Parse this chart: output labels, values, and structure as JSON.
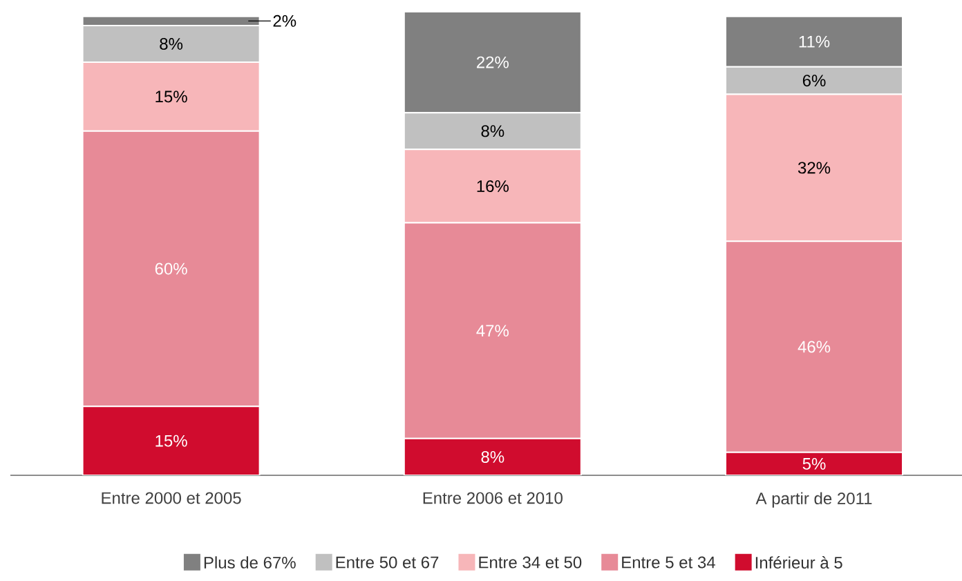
{
  "chart_data": {
    "type": "bar",
    "stacked": true,
    "legend": "bottom",
    "categories": [
      "Entre 2000 et 2005",
      "Entre 2006 et 2010",
      "A partir de 2011"
    ],
    "series": [
      {
        "name": "Inférieur à 5",
        "color": "#d00c2e",
        "values": [
          15,
          8,
          5
        ],
        "value_labels": [
          "15%",
          "8%",
          "5%"
        ]
      },
      {
        "name": "Entre 5 et 34",
        "color": "#e78a97",
        "values": [
          60,
          47,
          46
        ],
        "value_labels": [
          "60%",
          "47%",
          "46%"
        ]
      },
      {
        "name": "Entre 34 et 50",
        "color": "#f7b6b9",
        "values": [
          15,
          16,
          32
        ],
        "value_labels": [
          "15%",
          "16%",
          "32%"
        ]
      },
      {
        "name": "Entre 50 et 67",
        "color": "#c0c0c0",
        "values": [
          8,
          8,
          6
        ],
        "value_labels": [
          "8%",
          "8%",
          "6%"
        ]
      },
      {
        "name": "Plus de 67%",
        "color": "#808080",
        "values": [
          2,
          22,
          11
        ],
        "value_labels": [
          "2%",
          "22%",
          "11%"
        ]
      }
    ]
  }
}
